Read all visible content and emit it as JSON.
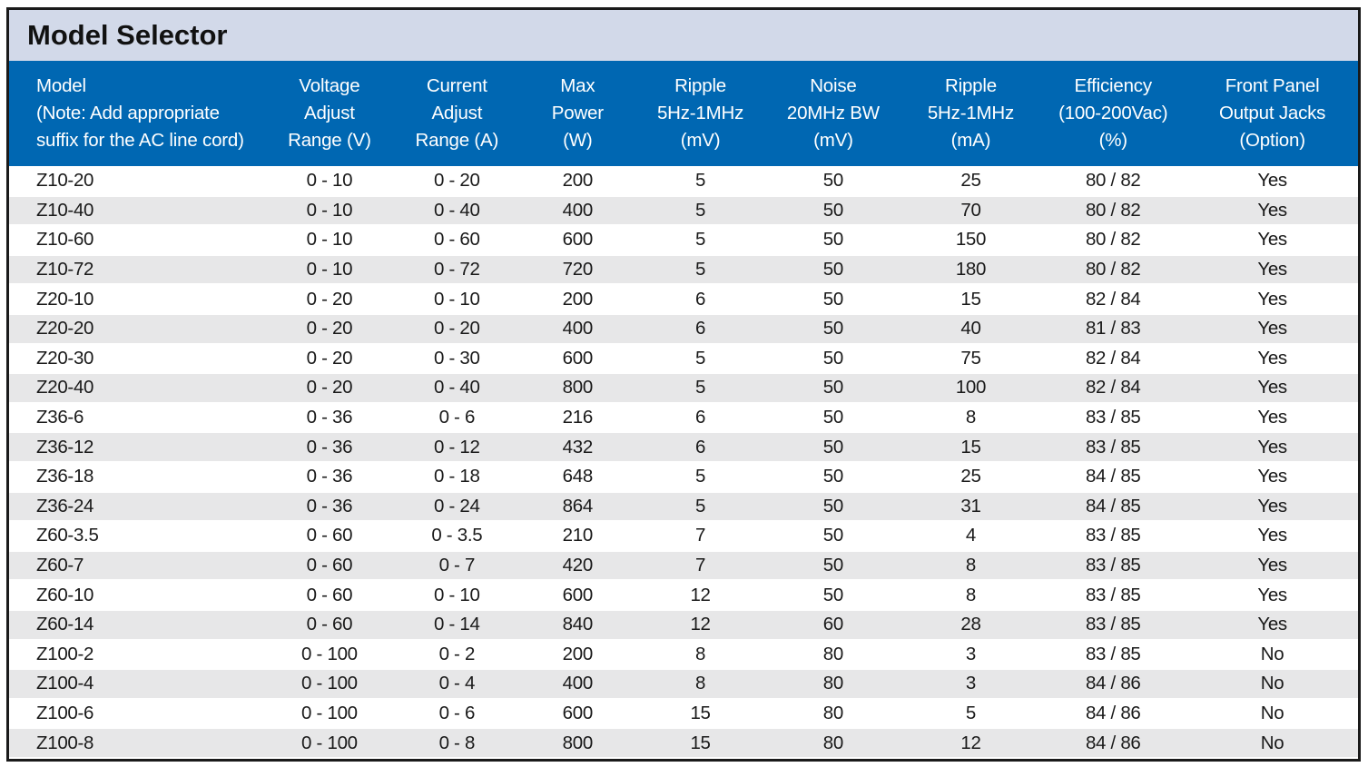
{
  "title": "Model Selector",
  "colors": {
    "title_bar_bg": "#d2d9e9",
    "header_bg": "#0067b2",
    "header_text": "#ffffff",
    "row_alt_bg": "#e7e7e8",
    "row_bg": "#ffffff",
    "text": "#1a1a1a",
    "border": "#1a1a1a"
  },
  "table": {
    "columns": [
      {
        "id": "model",
        "align": "left",
        "lines": [
          "Model",
          "(Note: Add appropriate",
          "suffix for the AC line cord)"
        ]
      },
      {
        "id": "voltage",
        "align": "center",
        "lines": [
          "Voltage",
          "Adjust",
          "Range (V)"
        ]
      },
      {
        "id": "current",
        "align": "center",
        "lines": [
          "Current",
          "Adjust",
          "Range (A)"
        ]
      },
      {
        "id": "max_power",
        "align": "center",
        "lines": [
          "Max",
          "Power",
          "(W)"
        ]
      },
      {
        "id": "ripple_mv",
        "align": "center",
        "lines": [
          "Ripple",
          "5Hz-1MHz",
          "(mV)"
        ]
      },
      {
        "id": "noise",
        "align": "center",
        "lines": [
          "Noise",
          "20MHz BW",
          "(mV)"
        ]
      },
      {
        "id": "ripple_ma",
        "align": "center",
        "lines": [
          "Ripple",
          "5Hz-1MHz",
          "(mA)"
        ]
      },
      {
        "id": "efficiency",
        "align": "center",
        "lines": [
          "Efficiency",
          "(100-200Vac)",
          "(%)"
        ]
      },
      {
        "id": "jacks",
        "align": "center",
        "lines": [
          "Front Panel",
          "Output Jacks",
          "(Option)"
        ]
      }
    ],
    "rows": [
      [
        "Z10-20",
        "0 - 10",
        "0 - 20",
        "200",
        "5",
        "50",
        "25",
        "80 / 82",
        "Yes"
      ],
      [
        "Z10-40",
        "0 - 10",
        "0 - 40",
        "400",
        "5",
        "50",
        "70",
        "80 / 82",
        "Yes"
      ],
      [
        "Z10-60",
        "0 - 10",
        "0 - 60",
        "600",
        "5",
        "50",
        "150",
        "80 / 82",
        "Yes"
      ],
      [
        "Z10-72",
        "0 - 10",
        "0 - 72",
        "720",
        "5",
        "50",
        "180",
        "80 / 82",
        "Yes"
      ],
      [
        "Z20-10",
        "0 - 20",
        "0 - 10",
        "200",
        "6",
        "50",
        "15",
        "82 / 84",
        "Yes"
      ],
      [
        "Z20-20",
        "0 - 20",
        "0 - 20",
        "400",
        "6",
        "50",
        "40",
        "81 / 83",
        "Yes"
      ],
      [
        "Z20-30",
        "0 - 20",
        "0 - 30",
        "600",
        "5",
        "50",
        "75",
        "82 / 84",
        "Yes"
      ],
      [
        "Z20-40",
        "0 - 20",
        "0 - 40",
        "800",
        "5",
        "50",
        "100",
        "82 / 84",
        "Yes"
      ],
      [
        "Z36-6",
        "0 - 36",
        "0 - 6",
        "216",
        "6",
        "50",
        "8",
        "83 / 85",
        "Yes"
      ],
      [
        "Z36-12",
        "0 - 36",
        "0 - 12",
        "432",
        "6",
        "50",
        "15",
        "83 / 85",
        "Yes"
      ],
      [
        "Z36-18",
        "0 - 36",
        "0 - 18",
        "648",
        "5",
        "50",
        "25",
        "84 / 85",
        "Yes"
      ],
      [
        "Z36-24",
        "0 - 36",
        "0 - 24",
        "864",
        "5",
        "50",
        "31",
        "84 / 85",
        "Yes"
      ],
      [
        "Z60-3.5",
        "0 - 60",
        "0 - 3.5",
        "210",
        "7",
        "50",
        "4",
        "83 / 85",
        "Yes"
      ],
      [
        "Z60-7",
        "0 - 60",
        "0 - 7",
        "420",
        "7",
        "50",
        "8",
        "83 / 85",
        "Yes"
      ],
      [
        "Z60-10",
        "0 - 60",
        "0 - 10",
        "600",
        "12",
        "50",
        "8",
        "83 / 85",
        "Yes"
      ],
      [
        "Z60-14",
        "0 - 60",
        "0 - 14",
        "840",
        "12",
        "60",
        "28",
        "83 / 85",
        "Yes"
      ],
      [
        "Z100-2",
        "0 - 100",
        "0 - 2",
        "200",
        "8",
        "80",
        "3",
        "83 / 85",
        "No"
      ],
      [
        "Z100-4",
        "0 - 100",
        "0 - 4",
        "400",
        "8",
        "80",
        "3",
        "84 / 86",
        "No"
      ],
      [
        "Z100-6",
        "0 - 100",
        "0 - 6",
        "600",
        "15",
        "80",
        "5",
        "84 / 86",
        "No"
      ],
      [
        "Z100-8",
        "0 - 100",
        "0 - 8",
        "800",
        "15",
        "80",
        "12",
        "84 / 86",
        "No"
      ]
    ]
  }
}
